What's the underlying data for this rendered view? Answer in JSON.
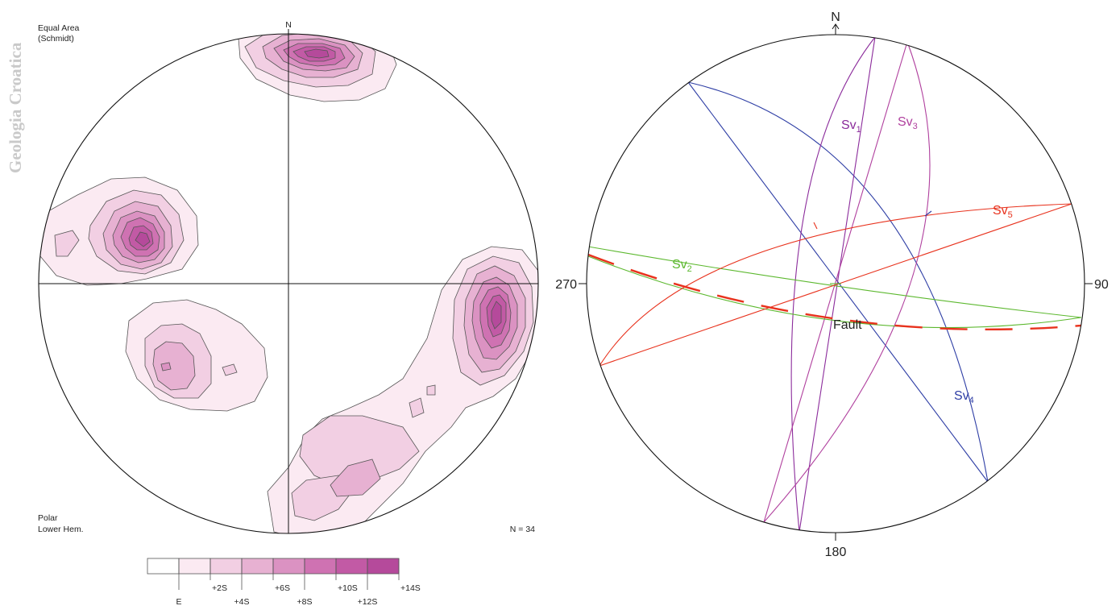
{
  "watermark": "Geologia Croatica",
  "left_net": {
    "projection_line1": "Equal Area",
    "projection_line2": "(Schmidt)",
    "north_label": "N",
    "method_line1": "Polar",
    "method_line2": "Lower Hem.",
    "count_label": "N = 34",
    "contour_colors": [
      "#ffffff",
      "#fbeaf2",
      "#f2cfe3",
      "#e7b1d2",
      "#db92c2",
      "#cf72b2",
      "#c25aa5",
      "#b54a9b"
    ],
    "legend_labels": [
      "E",
      "+2S",
      "+4S",
      "+6S",
      "+8S",
      "+10S",
      "+12S",
      "+14S"
    ]
  },
  "right_net": {
    "north_label": "N",
    "label_90": "90",
    "label_180": "180",
    "label_270": "270",
    "fault_label": "Fault",
    "planes": [
      {
        "name": "Sv",
        "sub": "1",
        "color": "#8b2b9b"
      },
      {
        "name": "Sv",
        "sub": "2",
        "color": "#5cb82e"
      },
      {
        "name": "Sv",
        "sub": "3",
        "color": "#b0409e"
      },
      {
        "name": "Sv",
        "sub": "4",
        "color": "#2e3ea5"
      },
      {
        "name": "Sv",
        "sub": "5",
        "color": "#e8321d"
      }
    ]
  }
}
